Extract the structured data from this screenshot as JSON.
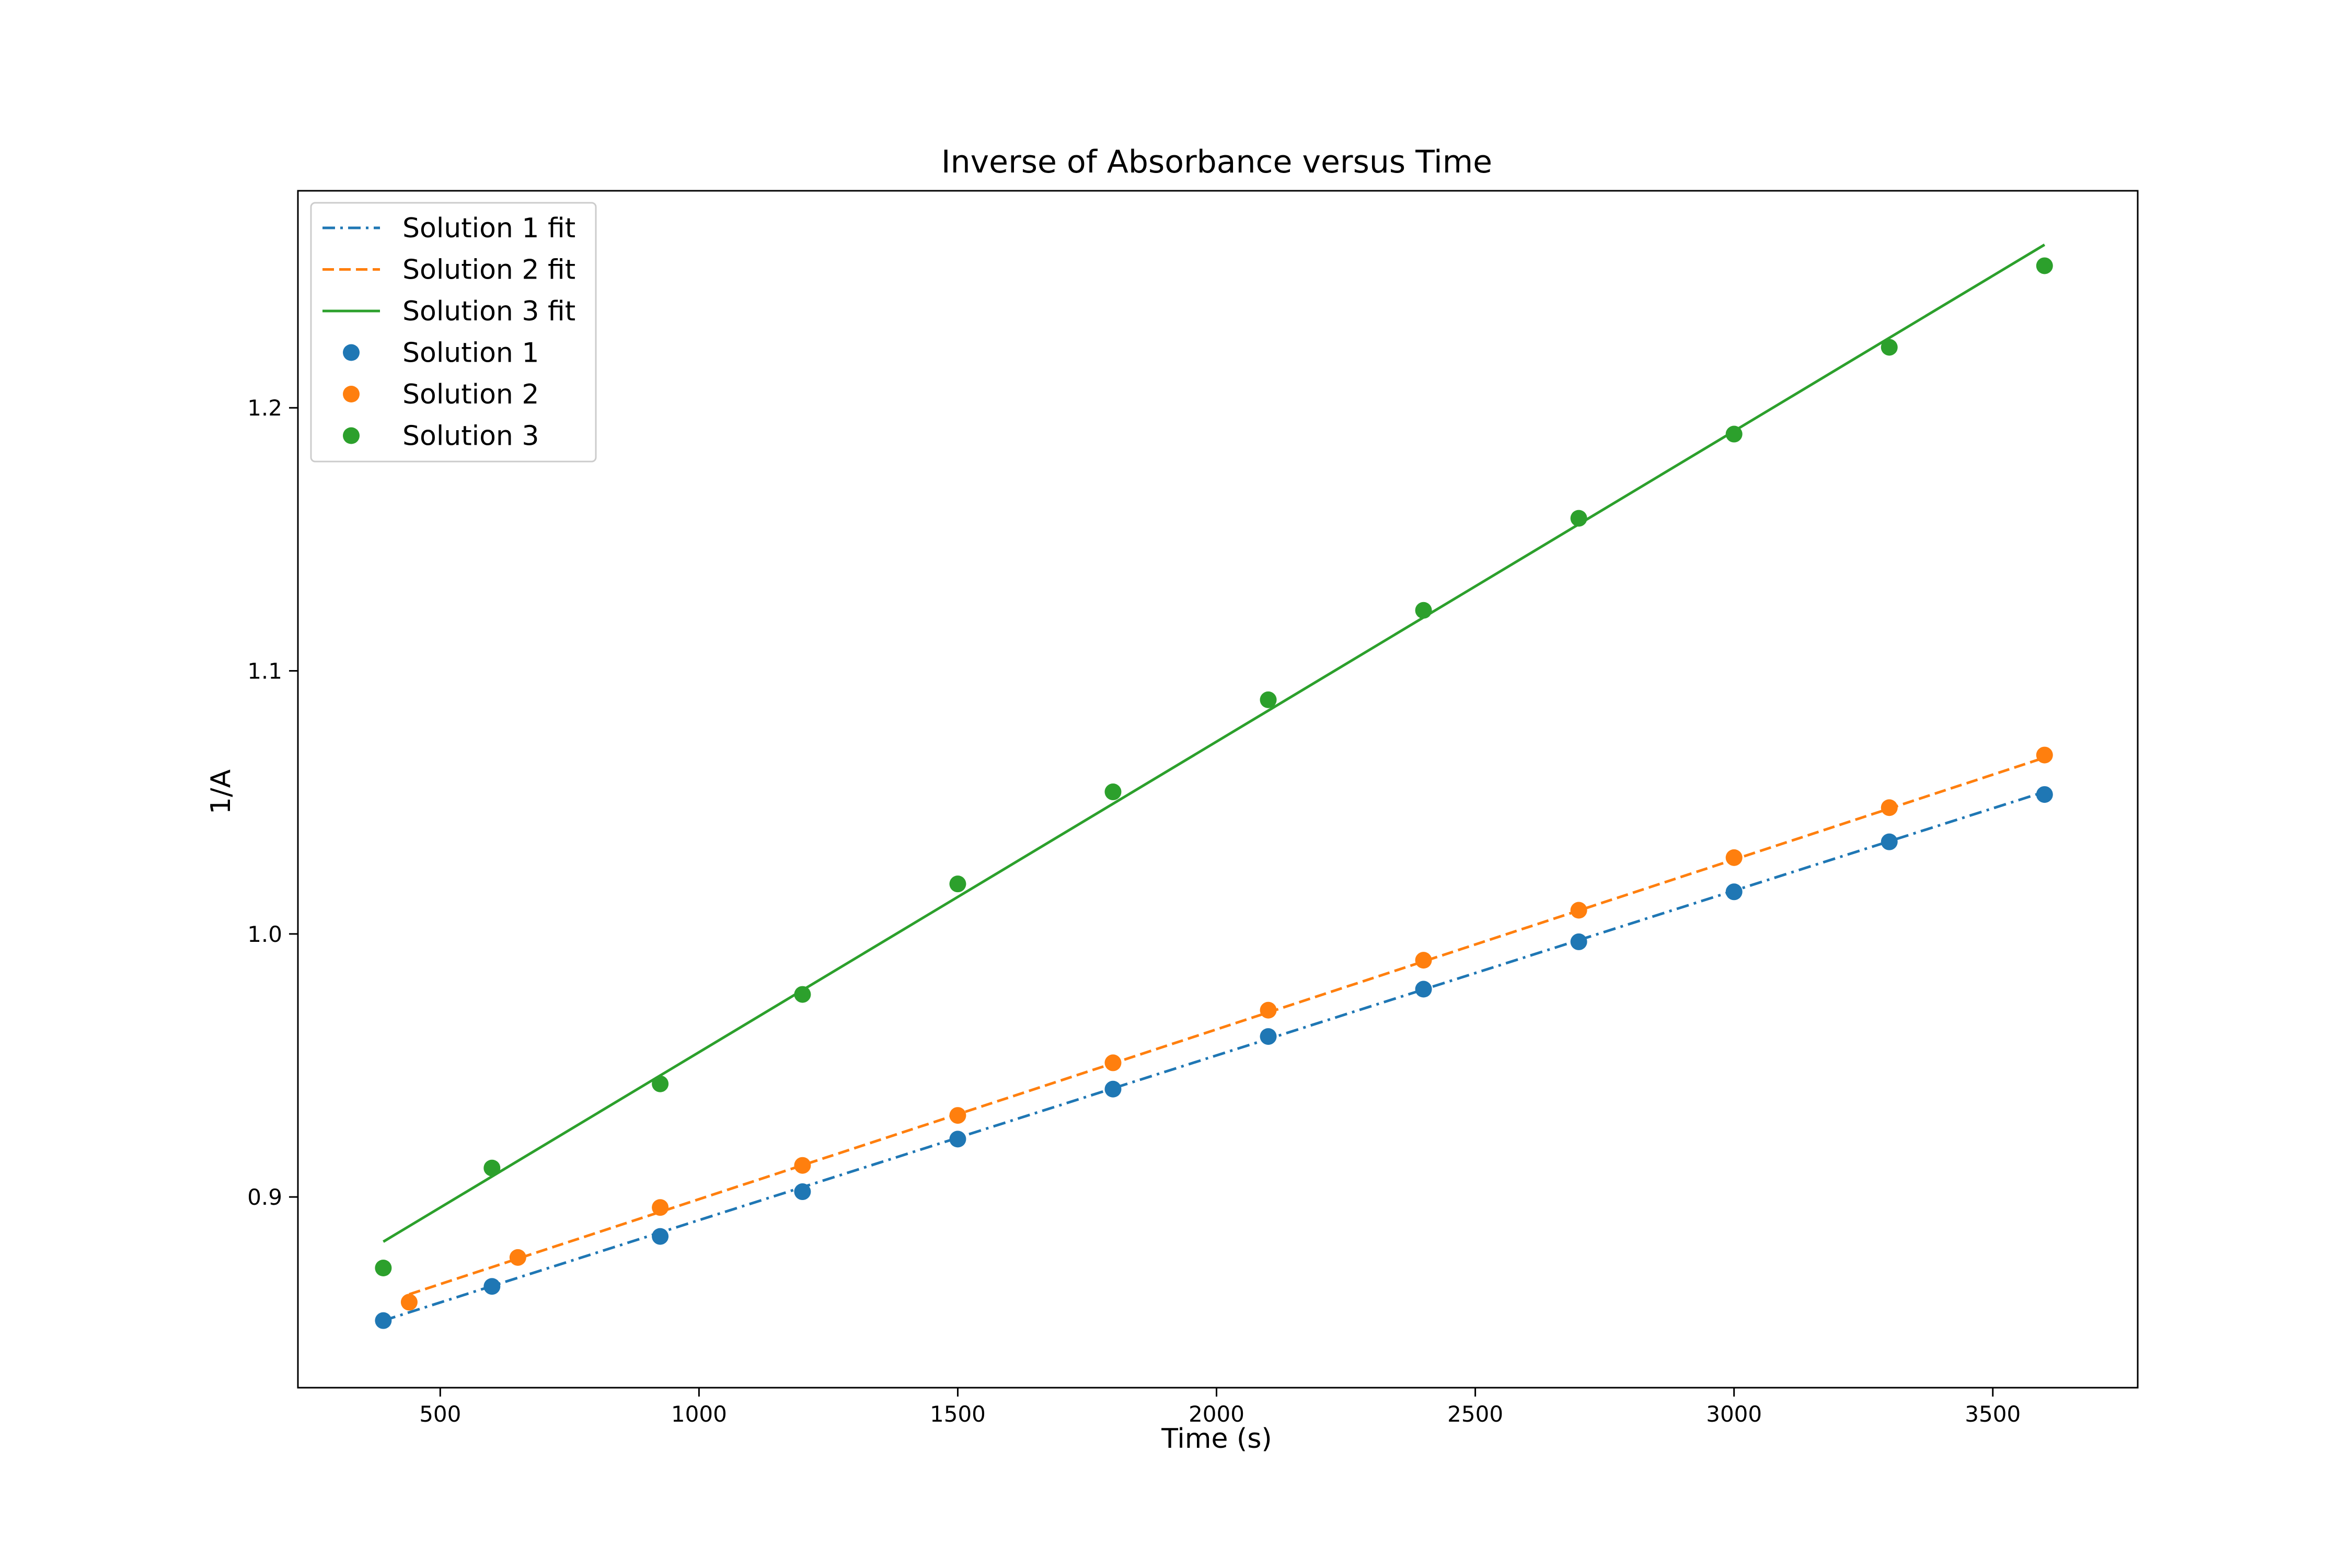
{
  "chart_data": {
    "type": "scatter",
    "title": "Inverse of Absorbance versus Time",
    "xlabel": "Time (s)",
    "ylabel": "1/A",
    "xlim": [
      225,
      3780
    ],
    "ylim": [
      0.8275,
      1.2825
    ],
    "xticks": [
      500,
      1000,
      1500,
      2000,
      2500,
      3000,
      3500
    ],
    "yticks": [
      0.9,
      1.0,
      1.1,
      1.2
    ],
    "xtick_labels": [
      "500",
      "1000",
      "1500",
      "2000",
      "2500",
      "3000",
      "3500"
    ],
    "ytick_labels": [
      "0.9",
      "1.0",
      "1.1",
      "1.2"
    ],
    "grid": false,
    "legend_position": "upper-left",
    "series": [
      {
        "name": "Solution 1",
        "fit_name": "Solution 1 fit",
        "color": "#1f77b4",
        "fit_style": "dashdot",
        "x": [
          390,
          600,
          925,
          1200,
          1500,
          1800,
          2100,
          2400,
          2700,
          3000,
          3300,
          3600
        ],
        "y": [
          0.853,
          0.866,
          0.885,
          0.902,
          0.922,
          0.941,
          0.961,
          0.979,
          0.997,
          1.016,
          1.035,
          1.053
        ],
        "fit": {
          "x": [
            390,
            3600
          ],
          "y": [
            0.853,
            1.054
          ]
        }
      },
      {
        "name": "Solution 2",
        "fit_name": "Solution 2 fit",
        "color": "#ff7f0e",
        "fit_style": "dashed",
        "x": [
          440,
          650,
          925,
          1200,
          1500,
          1800,
          2100,
          2400,
          2700,
          3000,
          3300,
          3600
        ],
        "y": [
          0.86,
          0.877,
          0.896,
          0.912,
          0.931,
          0.951,
          0.971,
          0.99,
          1.009,
          1.029,
          1.048,
          1.068
        ],
        "fit": {
          "x": [
            440,
            3600
          ],
          "y": [
            0.863,
            1.067
          ]
        }
      },
      {
        "name": "Solution 3",
        "fit_name": "Solution 3 fit",
        "color": "#2ca02c",
        "fit_style": "solid",
        "x": [
          390,
          600,
          925,
          1200,
          1500,
          1800,
          2100,
          2400,
          2700,
          3000,
          3300,
          3600
        ],
        "y": [
          0.873,
          0.911,
          0.943,
          0.977,
          1.019,
          1.054,
          1.089,
          1.123,
          1.158,
          1.19,
          1.223,
          1.254
        ],
        "fit": {
          "x": [
            390,
            3600
          ],
          "y": [
            0.883,
            1.262
          ]
        }
      }
    ]
  }
}
